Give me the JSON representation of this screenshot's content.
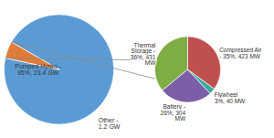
{
  "chart_data": [
    {
      "type": "pie",
      "categories": [
        "Pumped Hydro -\n95%, 23.4 GW",
        "Other -\n1.2 GW"
      ],
      "values": [
        95,
        5
      ],
      "colors": [
        "#5b9bd5",
        "#e07b39"
      ]
    },
    {
      "type": "pie",
      "categories": [
        "Thermal\nStorage -\n36%, 431\nMW",
        "Battery -\n26%, 304\nMW",
        "Flywheel\n3%, 40 MW",
        "Compressed Air\n- 35%, 423 MW"
      ],
      "values": [
        36,
        26,
        3,
        35
      ],
      "colors": [
        "#7fad45",
        "#7b5ea7",
        "#3aaba0",
        "#c0504d"
      ]
    }
  ]
}
